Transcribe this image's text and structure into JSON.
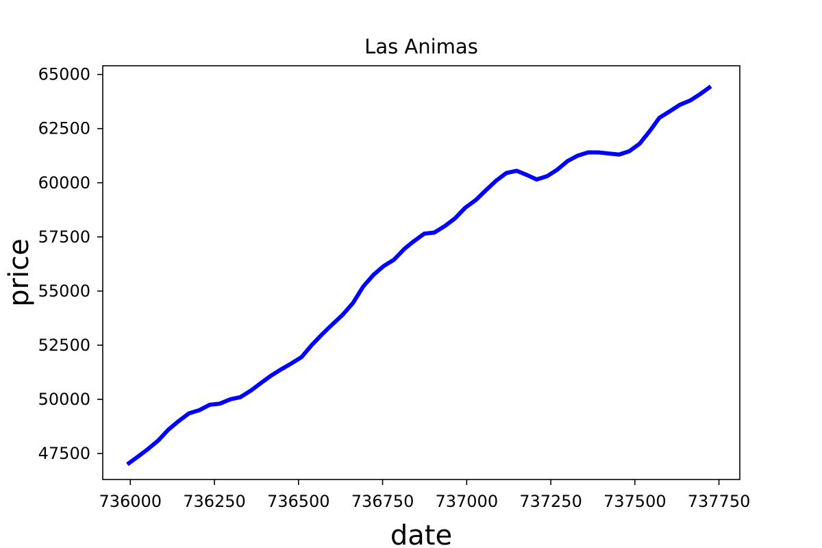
{
  "chart_data": {
    "type": "line",
    "title": "Las Animas",
    "xlabel": "date",
    "ylabel": "price",
    "xlim": [
      735918,
      737812
    ],
    "ylim": [
      46300,
      65400
    ],
    "x_ticks": [
      736000,
      736250,
      736500,
      736750,
      737000,
      737250,
      737500,
      737750
    ],
    "y_ticks": [
      47500,
      50000,
      52500,
      55000,
      57500,
      60000,
      62500,
      65000
    ],
    "grid": false,
    "legend": "none",
    "series": [
      {
        "color": "#0000ff",
        "x": [
          735991,
          736022,
          736052,
          736083,
          736113,
          736144,
          736174,
          736205,
          736236,
          736266,
          736297,
          736327,
          736358,
          736388,
          736419,
          736450,
          736478,
          736509,
          736539,
          736570,
          736600,
          736631,
          736662,
          736692,
          736723,
          736753,
          736784,
          736815,
          736843,
          736874,
          736904,
          736935,
          736965,
          736996,
          737027,
          737057,
          737088,
          737118,
          737149,
          737180,
          737208,
          737239,
          737269,
          737300,
          737330,
          737361,
          737392,
          737422,
          737453,
          737483,
          737514,
          737545,
          737573,
          737604,
          737634,
          737665,
          737695,
          737726
        ],
        "y": [
          47000,
          47350,
          47700,
          48100,
          48600,
          49000,
          49350,
          49500,
          49750,
          49800,
          50000,
          50100,
          50400,
          50750,
          51100,
          51400,
          51650,
          51950,
          52500,
          53000,
          53450,
          53900,
          54450,
          55200,
          55750,
          56150,
          56450,
          56950,
          57300,
          57650,
          57700,
          58000,
          58350,
          58850,
          59200,
          59650,
          60100,
          60450,
          60550,
          60350,
          60150,
          60300,
          60600,
          61000,
          61250,
          61400,
          61400,
          61350,
          61300,
          61450,
          61800,
          62400,
          63000,
          63300,
          63600,
          63800,
          64100,
          64450
        ]
      }
    ]
  }
}
